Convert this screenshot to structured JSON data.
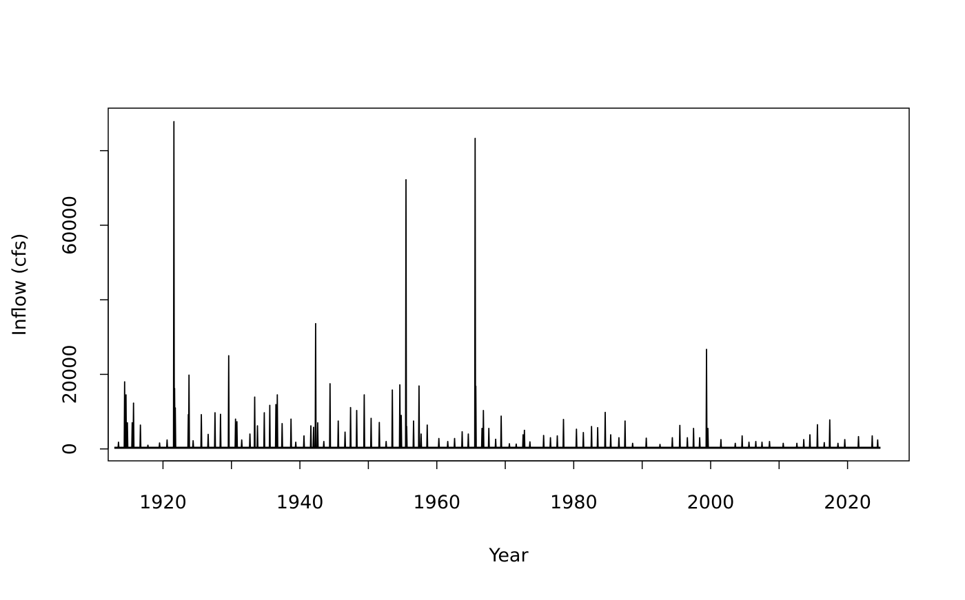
{
  "chart_data": {
    "type": "line",
    "title": "",
    "xlabel": "Year",
    "ylabel": "Inflow (cfs)",
    "xlim": [
      1912,
      2029
    ],
    "ylim": [
      -3200,
      91400
    ],
    "x_ticks": [
      1920,
      1940,
      1960,
      1980,
      2000,
      2020
    ],
    "y_ticks": [
      0,
      20000,
      40000,
      60000,
      80000
    ],
    "y_tick_labels": [
      "0",
      "20000",
      "",
      "60000",
      ""
    ],
    "grid": false,
    "legend": "none",
    "line_color": "#000000",
    "baseline_inflow": 300,
    "series": [
      {
        "values": [
          [
            1913.5,
            1800
          ],
          [
            1914.4,
            18000
          ],
          [
            1914.6,
            14500
          ],
          [
            1914.8,
            7000
          ],
          [
            1915.5,
            7000
          ],
          [
            1915.7,
            12300
          ],
          [
            1916.7,
            6400
          ],
          [
            1917.8,
            1000
          ],
          [
            1919.5,
            1600
          ],
          [
            1920.6,
            2400
          ],
          [
            1921.6,
            87800
          ],
          [
            1921.7,
            16200
          ],
          [
            1921.8,
            11000
          ],
          [
            1923.7,
            9200
          ],
          [
            1923.8,
            19800
          ],
          [
            1924.4,
            2200
          ],
          [
            1925.6,
            9200
          ],
          [
            1926.6,
            3900
          ],
          [
            1927.6,
            9700
          ],
          [
            1928.4,
            9300
          ],
          [
            1929.6,
            25000
          ],
          [
            1930.6,
            8000
          ],
          [
            1930.8,
            7300
          ],
          [
            1931.5,
            2400
          ],
          [
            1932.7,
            4000
          ],
          [
            1933.4,
            13900
          ],
          [
            1933.8,
            6200
          ],
          [
            1934.8,
            9700
          ],
          [
            1935.6,
            11700
          ],
          [
            1936.5,
            11900
          ],
          [
            1936.7,
            14500
          ],
          [
            1937.4,
            6800
          ],
          [
            1938.7,
            8000
          ],
          [
            1939.4,
            1800
          ],
          [
            1940.6,
            3500
          ],
          [
            1941.6,
            6200
          ],
          [
            1942.0,
            5800
          ],
          [
            1942.3,
            33600
          ],
          [
            1942.6,
            7000
          ],
          [
            1943.5,
            2000
          ],
          [
            1944.4,
            17500
          ],
          [
            1945.6,
            7500
          ],
          [
            1946.6,
            4500
          ],
          [
            1947.4,
            11100
          ],
          [
            1948.3,
            10300
          ],
          [
            1949.4,
            14500
          ],
          [
            1950.4,
            8200
          ],
          [
            1951.6,
            7100
          ],
          [
            1952.6,
            2000
          ],
          [
            1953.5,
            15800
          ],
          [
            1954.6,
            17200
          ],
          [
            1954.8,
            9000
          ],
          [
            1955.5,
            72200
          ],
          [
            1955.6,
            6000
          ],
          [
            1956.6,
            7500
          ],
          [
            1957.4,
            16900
          ],
          [
            1957.7,
            4000
          ],
          [
            1958.6,
            6400
          ],
          [
            1960.3,
            2800
          ],
          [
            1961.6,
            2000
          ],
          [
            1962.6,
            2800
          ],
          [
            1963.7,
            4600
          ],
          [
            1964.6,
            4000
          ],
          [
            1965.6,
            83300
          ],
          [
            1965.7,
            16800
          ],
          [
            1966.6,
            5500
          ],
          [
            1966.8,
            10300
          ],
          [
            1967.6,
            5500
          ],
          [
            1968.6,
            2600
          ],
          [
            1969.4,
            8800
          ],
          [
            1970.6,
            1400
          ],
          [
            1971.6,
            1300
          ],
          [
            1972.6,
            3800
          ],
          [
            1972.8,
            5000
          ],
          [
            1973.6,
            1900
          ],
          [
            1975.6,
            3600
          ],
          [
            1976.6,
            3000
          ],
          [
            1977.6,
            3500
          ],
          [
            1978.5,
            7900
          ],
          [
            1980.4,
            5300
          ],
          [
            1981.4,
            4400
          ],
          [
            1982.6,
            6000
          ],
          [
            1983.5,
            5700
          ],
          [
            1984.6,
            9800
          ],
          [
            1985.4,
            3800
          ],
          [
            1986.6,
            3000
          ],
          [
            1987.5,
            7500
          ],
          [
            1988.6,
            1500
          ],
          [
            1990.6,
            2900
          ],
          [
            1992.6,
            1200
          ],
          [
            1994.4,
            3000
          ],
          [
            1995.5,
            6300
          ],
          [
            1996.6,
            3000
          ],
          [
            1997.5,
            5500
          ],
          [
            1998.4,
            3000
          ],
          [
            1999.4,
            26700
          ],
          [
            1999.6,
            5500
          ],
          [
            2001.5,
            2500
          ],
          [
            2003.6,
            1500
          ],
          [
            2004.6,
            3500
          ],
          [
            2005.6,
            1800
          ],
          [
            2006.6,
            2000
          ],
          [
            2007.5,
            1800
          ],
          [
            2008.6,
            2000
          ],
          [
            2010.6,
            1500
          ],
          [
            2012.6,
            1500
          ],
          [
            2013.6,
            2500
          ],
          [
            2014.5,
            3800
          ],
          [
            2015.6,
            6500
          ],
          [
            2016.6,
            1700
          ],
          [
            2017.4,
            7800
          ],
          [
            2018.6,
            1500
          ],
          [
            2019.6,
            2500
          ],
          [
            2021.6,
            3300
          ],
          [
            2023.6,
            3500
          ],
          [
            2024.4,
            2400
          ]
        ]
      }
    ]
  }
}
